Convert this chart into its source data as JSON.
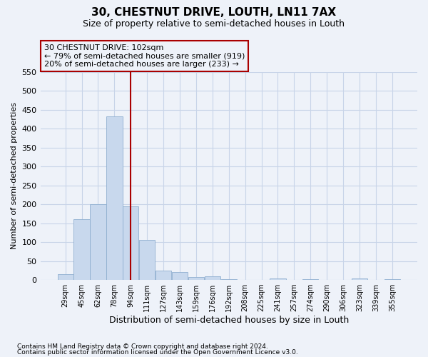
{
  "title1": "30, CHESTNUT DRIVE, LOUTH, LN11 7AX",
  "title2": "Size of property relative to semi-detached houses in Louth",
  "xlabel": "Distribution of semi-detached houses by size in Louth",
  "ylabel": "Number of semi-detached properties",
  "bins": [
    "29sqm",
    "45sqm",
    "62sqm",
    "78sqm",
    "94sqm",
    "111sqm",
    "127sqm",
    "143sqm",
    "159sqm",
    "176sqm",
    "192sqm",
    "208sqm",
    "225sqm",
    "241sqm",
    "257sqm",
    "274sqm",
    "290sqm",
    "306sqm",
    "323sqm",
    "339sqm",
    "355sqm"
  ],
  "values": [
    15,
    160,
    200,
    433,
    195,
    105,
    25,
    20,
    7,
    10,
    2,
    0,
    0,
    4,
    0,
    2,
    0,
    0,
    3,
    0,
    2
  ],
  "bar_color": "#c8d8ed",
  "bar_edgecolor": "#8fafd0",
  "vline_x_index": 4,
  "vline_color": "#aa0000",
  "annotation_box_edgecolor": "#aa0000",
  "annotation_line1": "30 CHESTNUT DRIVE: 102sqm",
  "annotation_line2": "← 79% of semi-detached houses are smaller (919)",
  "annotation_line3": "20% of semi-detached houses are larger (233) →",
  "ylim": [
    0,
    550
  ],
  "yticks": [
    0,
    50,
    100,
    150,
    200,
    250,
    300,
    350,
    400,
    450,
    500,
    550
  ],
  "grid_color": "#c8d4e8",
  "footnote1": "Contains HM Land Registry data © Crown copyright and database right 2024.",
  "footnote2": "Contains public sector information licensed under the Open Government Licence v3.0.",
  "background_color": "#eef2f9",
  "title1_fontsize": 11,
  "title2_fontsize": 9,
  "ylabel_fontsize": 8,
  "xlabel_fontsize": 9,
  "tick_fontsize": 8,
  "xtick_fontsize": 7,
  "annotation_fontsize": 8,
  "footnote_fontsize": 6.5
}
